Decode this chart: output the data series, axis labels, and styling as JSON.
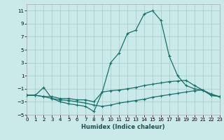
{
  "xlabel": "Humidex (Indice chaleur)",
  "bg_color": "#caeaea",
  "grid_color": "#aacece",
  "line_color": "#1a6e68",
  "xlim": [
    0,
    23
  ],
  "ylim": [
    -5,
    12
  ],
  "yticks": [
    -5,
    -3,
    -1,
    1,
    3,
    5,
    7,
    9,
    11
  ],
  "xticks": [
    0,
    1,
    2,
    3,
    4,
    5,
    6,
    7,
    8,
    9,
    10,
    11,
    12,
    13,
    14,
    15,
    16,
    17,
    18,
    19,
    20,
    21,
    22,
    23
  ],
  "curve1_x": [
    0,
    1,
    2,
    3,
    4,
    5,
    6,
    7,
    8,
    9,
    10,
    11,
    12,
    13,
    14,
    15,
    16,
    17,
    18,
    19,
    20,
    21,
    22,
    23
  ],
  "curve1_y": [
    -2.0,
    -2.0,
    -0.8,
    -2.5,
    -3.0,
    -3.3,
    -3.5,
    -3.7,
    -4.5,
    -1.5,
    3.0,
    4.5,
    7.5,
    8.0,
    10.5,
    11.0,
    9.5,
    4.0,
    1.0,
    -0.5,
    -1.0,
    -1.2,
    -1.8,
    -2.2
  ],
  "curve2_x": [
    0,
    1,
    2,
    3,
    4,
    5,
    6,
    7,
    8,
    9,
    10,
    11,
    12,
    13,
    14,
    15,
    16,
    17,
    18,
    19,
    20,
    21,
    22,
    23
  ],
  "curve2_y": [
    -2.0,
    -2.0,
    -2.2,
    -2.2,
    -2.5,
    -2.5,
    -2.7,
    -2.7,
    -3.0,
    -1.5,
    -1.3,
    -1.2,
    -1.0,
    -0.8,
    -0.5,
    -0.3,
    -0.1,
    0.1,
    0.2,
    0.3,
    -0.5,
    -1.2,
    -2.0,
    -2.2
  ],
  "curve3_x": [
    0,
    1,
    2,
    3,
    4,
    5,
    6,
    7,
    8,
    9,
    10,
    11,
    12,
    13,
    14,
    15,
    16,
    17,
    18,
    19,
    20,
    21,
    22,
    23
  ],
  "curve3_y": [
    -2.0,
    -2.0,
    -2.2,
    -2.5,
    -2.7,
    -2.8,
    -3.0,
    -3.2,
    -3.5,
    -3.7,
    -3.5,
    -3.2,
    -3.0,
    -2.8,
    -2.6,
    -2.3,
    -2.1,
    -1.9,
    -1.7,
    -1.5,
    -1.3,
    -1.2,
    -2.0,
    -2.2
  ]
}
